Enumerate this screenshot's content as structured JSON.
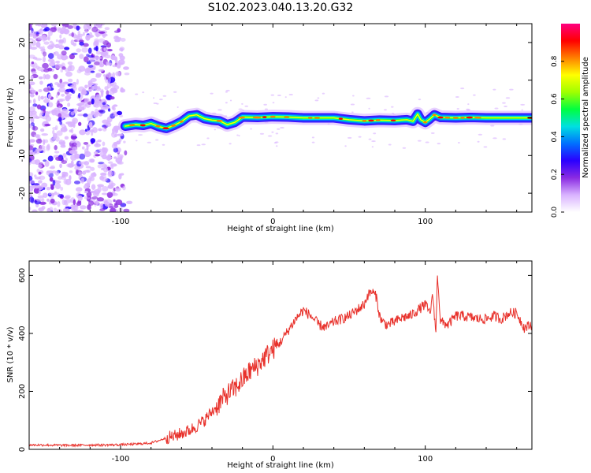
{
  "figure": {
    "title": "S102.2023.040.13.20.G32"
  },
  "colors": {
    "frame": "#000000",
    "snr_line": "#e8312b",
    "background": "#ffffff"
  },
  "chart_data": [
    {
      "id": "spectrogram",
      "type": "heatmap",
      "title": "",
      "xlabel": "Height of straight line (km)",
      "ylabel": "Frequency (Hz)",
      "xlim": [
        -160,
        170
      ],
      "ylim": [
        -25,
        25
      ],
      "x_ticks": [
        -100,
        0,
        100
      ],
      "x_tick_labels": [
        "-100",
        "0",
        "100"
      ],
      "y_ticks": [
        -20,
        -10,
        0,
        10,
        20
      ],
      "y_tick_labels": [
        "-20",
        "-10",
        "0",
        "10",
        "20"
      ],
      "colorbar": {
        "label": "Normalized spectral amplitude",
        "range": [
          0,
          1
        ],
        "ticks": [
          0.0,
          0.2,
          0.4,
          0.6,
          0.8
        ],
        "tick_labels": [
          "0.0",
          "0.2",
          "0.4",
          "0.6",
          "0.8"
        ],
        "colormap": [
          "#ffffff",
          "#d9b3ff",
          "#8a2be2",
          "#2a00ff",
          "#0070ff",
          "#00e0e0",
          "#00ff40",
          "#a0ff00",
          "#ffff00",
          "#ff8000",
          "#ff0000",
          "#ff0080"
        ]
      },
      "noise_region": {
        "x_range": [
          -160,
          -97
        ],
        "frequency_range": [
          -25,
          25
        ]
      },
      "signal_track": {
        "x": [
          -97,
          -90,
          -85,
          -80,
          -75,
          -70,
          -65,
          -60,
          -55,
          -50,
          -45,
          -40,
          -35,
          -30,
          -25,
          -20,
          -10,
          0,
          10,
          20,
          30,
          40,
          50,
          60,
          70,
          80,
          88,
          92,
          95,
          97,
          100,
          103,
          106,
          110,
          120,
          130,
          140,
          150,
          160,
          170
        ],
        "frequency": [
          -2.2,
          -1.8,
          -2.0,
          -1.5,
          -2.3,
          -2.8,
          -2.0,
          -1.0,
          0.5,
          0.8,
          -0.2,
          -0.6,
          -0.8,
          -1.8,
          -1.2,
          0.2,
          0.1,
          0.3,
          0.2,
          0.0,
          0.0,
          0.0,
          -0.5,
          -0.8,
          -0.6,
          -0.7,
          -0.5,
          -0.9,
          1.0,
          -0.5,
          -1.2,
          -0.3,
          0.8,
          0.1,
          0.0,
          0.1,
          0.0,
          0.0,
          0.0,
          0.0
        ]
      }
    },
    {
      "id": "snr",
      "type": "line",
      "title": "",
      "xlabel": "Height of straight line (km)",
      "ylabel": "SNR (10 * v/v)",
      "xlim": [
        -160,
        170
      ],
      "ylim": [
        0,
        650
      ],
      "x_ticks": [
        -100,
        0,
        100
      ],
      "x_tick_labels": [
        "-100",
        "0",
        "100"
      ],
      "y_ticks": [
        0,
        200,
        400,
        600
      ],
      "y_tick_labels": [
        "0",
        "200",
        "400",
        "600"
      ],
      "x": [
        -160,
        -150,
        -140,
        -130,
        -120,
        -110,
        -100,
        -90,
        -80,
        -75,
        -70,
        -65,
        -60,
        -55,
        -50,
        -45,
        -40,
        -35,
        -30,
        -25,
        -20,
        -15,
        -10,
        -5,
        0,
        5,
        10,
        15,
        20,
        25,
        30,
        35,
        40,
        45,
        50,
        55,
        60,
        62,
        65,
        68,
        70,
        72,
        75,
        80,
        85,
        90,
        95,
        100,
        103,
        105,
        107,
        108,
        110,
        115,
        120,
        125,
        130,
        135,
        140,
        145,
        150,
        155,
        160,
        165,
        170
      ],
      "y": [
        15,
        15,
        14,
        14,
        15,
        15,
        16,
        18,
        22,
        30,
        40,
        45,
        55,
        65,
        80,
        100,
        130,
        160,
        190,
        210,
        240,
        270,
        290,
        320,
        345,
        370,
        410,
        450,
        480,
        460,
        430,
        420,
        440,
        450,
        460,
        480,
        500,
        530,
        545,
        525,
        460,
        440,
        430,
        440,
        455,
        460,
        480,
        500,
        470,
        530,
        400,
        610,
        440,
        430,
        460,
        460,
        455,
        450,
        450,
        460,
        450,
        470,
        470,
        420,
        430
      ]
    }
  ]
}
